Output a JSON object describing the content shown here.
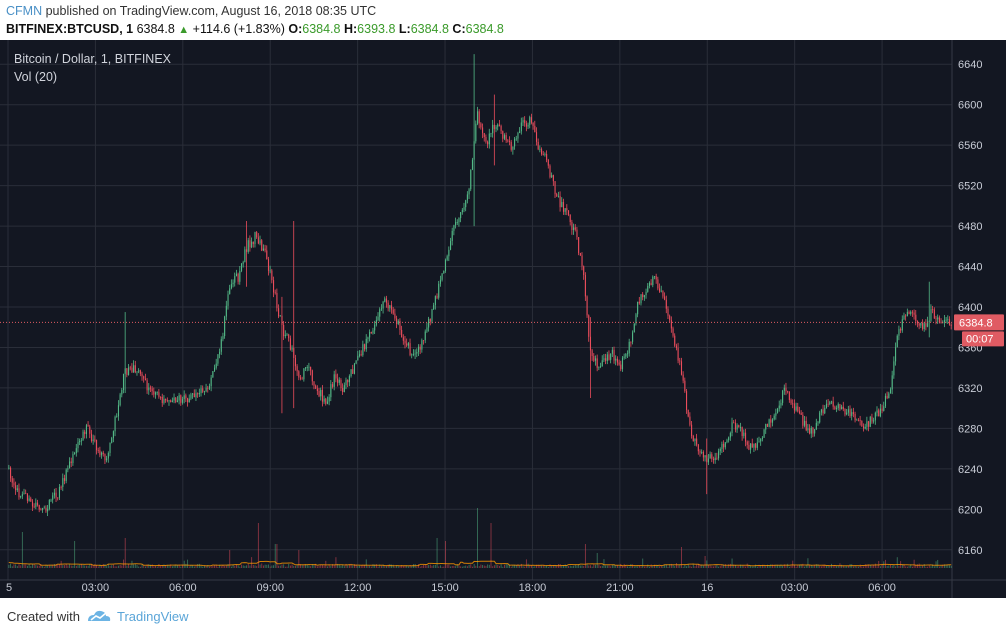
{
  "header": {
    "author": "CFMN",
    "published_text": "published on TradingView.com, August 16, 2018 08:35 UTC",
    "symbol": "BITFINEX:BTCUSD, 1",
    "last": "6384.8",
    "change": "+114.6 (+1.83%)",
    "o_label": "O:",
    "o_value": "6384.8",
    "h_label": "H:",
    "h_value": "6393.8",
    "l_label": "L:",
    "l_value": "6384.8",
    "c_label": "C:",
    "c_value": "6384.8"
  },
  "pane": {
    "title": "Bitcoin / Dollar, 1, BITFINEX",
    "volume_label": "Vol (20)"
  },
  "price_tag": {
    "price": "6384.8",
    "countdown": "00:07"
  },
  "footer": {
    "created_with": "Created with",
    "brand": "TradingView"
  },
  "colors": {
    "background": "#131722",
    "grid": "#2a2e39",
    "up": "#53b987",
    "down": "#eb4d5c",
    "price_tag": "#e05b63",
    "volume_ma": "#ff9800"
  },
  "chart_data": {
    "type": "candlestick",
    "ylim": [
      6140,
      6660
    ],
    "y_ticks": [
      6160,
      6200,
      6240,
      6280,
      6320,
      6360,
      6400,
      6440,
      6480,
      6520,
      6560,
      6600,
      6640
    ],
    "x_ticks": [
      {
        "hour": 0,
        "label": "5"
      },
      {
        "hour": 3,
        "label": "03:00"
      },
      {
        "hour": 6,
        "label": "06:00"
      },
      {
        "hour": 9,
        "label": "09:00"
      },
      {
        "hour": 12,
        "label": "12:00"
      },
      {
        "hour": 15,
        "label": "15:00"
      },
      {
        "hour": 18,
        "label": "18:00"
      },
      {
        "hour": 21,
        "label": "21:00"
      },
      {
        "hour": 24,
        "label": "16"
      },
      {
        "hour": 27,
        "label": "03:00"
      },
      {
        "hour": 30,
        "label": "06:00"
      }
    ],
    "xlim_hours": [
      0,
      32.4
    ],
    "price_path": [
      [
        0.0,
        6240
      ],
      [
        0.4,
        6215
      ],
      [
        0.9,
        6205
      ],
      [
        1.3,
        6200
      ],
      [
        1.8,
        6220
      ],
      [
        2.3,
        6260
      ],
      [
        2.7,
        6280
      ],
      [
        3.1,
        6260
      ],
      [
        3.4,
        6250
      ],
      [
        3.7,
        6290
      ],
      [
        4.0,
        6335
      ],
      [
        4.4,
        6340
      ],
      [
        4.8,
        6320
      ],
      [
        5.2,
        6310
      ],
      [
        5.6,
        6310
      ],
      [
        6.0,
        6310
      ],
      [
        6.5,
        6310
      ],
      [
        6.9,
        6325
      ],
      [
        7.3,
        6360
      ],
      [
        7.6,
        6420
      ],
      [
        7.9,
        6430
      ],
      [
        8.2,
        6460
      ],
      [
        8.5,
        6470
      ],
      [
        8.8,
        6455
      ],
      [
        9.1,
        6420
      ],
      [
        9.4,
        6380
      ],
      [
        9.7,
        6360
      ],
      [
        10.0,
        6330
      ],
      [
        10.3,
        6340
      ],
      [
        10.6,
        6320
      ],
      [
        10.9,
        6305
      ],
      [
        11.2,
        6330
      ],
      [
        11.5,
        6320
      ],
      [
        11.9,
        6340
      ],
      [
        12.2,
        6360
      ],
      [
        12.6,
        6380
      ],
      [
        12.9,
        6410
      ],
      [
        13.3,
        6390
      ],
      [
        13.6,
        6365
      ],
      [
        14.0,
        6350
      ],
      [
        14.3,
        6370
      ],
      [
        14.6,
        6400
      ],
      [
        14.9,
        6430
      ],
      [
        15.2,
        6470
      ],
      [
        15.5,
        6490
      ],
      [
        15.8,
        6510
      ],
      [
        16.1,
        6590
      ],
      [
        16.4,
        6560
      ],
      [
        16.7,
        6580
      ],
      [
        17.0,
        6570
      ],
      [
        17.3,
        6555
      ],
      [
        17.6,
        6580
      ],
      [
        17.9,
        6585
      ],
      [
        18.2,
        6560
      ],
      [
        18.5,
        6545
      ],
      [
        18.8,
        6510
      ],
      [
        19.2,
        6490
      ],
      [
        19.5,
        6470
      ],
      [
        19.8,
        6420
      ],
      [
        20.0,
        6350
      ],
      [
        20.3,
        6340
      ],
      [
        20.7,
        6355
      ],
      [
        21.0,
        6340
      ],
      [
        21.3,
        6360
      ],
      [
        21.6,
        6400
      ],
      [
        21.9,
        6420
      ],
      [
        22.2,
        6430
      ],
      [
        22.5,
        6410
      ],
      [
        22.8,
        6370
      ],
      [
        23.1,
        6340
      ],
      [
        23.4,
        6280
      ],
      [
        23.7,
        6260
      ],
      [
        24.0,
        6250
      ],
      [
        24.3,
        6250
      ],
      [
        24.6,
        6265
      ],
      [
        24.9,
        6285
      ],
      [
        25.2,
        6275
      ],
      [
        25.5,
        6260
      ],
      [
        25.8,
        6270
      ],
      [
        26.1,
        6285
      ],
      [
        26.4,
        6300
      ],
      [
        26.7,
        6320
      ],
      [
        27.0,
        6300
      ],
      [
        27.3,
        6285
      ],
      [
        27.6,
        6275
      ],
      [
        27.9,
        6295
      ],
      [
        28.2,
        6310
      ],
      [
        28.5,
        6300
      ],
      [
        28.8,
        6295
      ],
      [
        29.1,
        6290
      ],
      [
        29.4,
        6280
      ],
      [
        29.7,
        6290
      ],
      [
        30.0,
        6300
      ],
      [
        30.3,
        6320
      ],
      [
        30.5,
        6370
      ],
      [
        30.8,
        6395
      ],
      [
        31.1,
        6390
      ],
      [
        31.4,
        6380
      ],
      [
        31.7,
        6395
      ],
      [
        32.0,
        6388
      ],
      [
        32.3,
        6384.8
      ]
    ],
    "spikes": [
      {
        "hour": 4.0,
        "high": 6395,
        "low": 6315
      },
      {
        "hour": 8.2,
        "high": 6485,
        "low": 6420
      },
      {
        "hour": 9.8,
        "high": 6485,
        "low": 6300
      },
      {
        "hour": 9.4,
        "high": 6410,
        "low": 6295
      },
      {
        "hour": 16.0,
        "high": 6650,
        "low": 6480
      },
      {
        "hour": 16.7,
        "high": 6610,
        "low": 6540
      },
      {
        "hour": 20.0,
        "high": 6390,
        "low": 6310
      },
      {
        "hour": 24.0,
        "high": 6270,
        "low": 6215
      },
      {
        "hour": 31.6,
        "high": 6425,
        "low": 6370
      }
    ],
    "volume_spikes": [
      {
        "hour": 0.5,
        "value": 0.6
      },
      {
        "hour": 2.3,
        "value": 0.45
      },
      {
        "hour": 4.0,
        "value": 0.5
      },
      {
        "hour": 7.6,
        "value": 0.3
      },
      {
        "hour": 8.6,
        "value": 0.75
      },
      {
        "hour": 9.2,
        "value": 0.4
      },
      {
        "hour": 10.0,
        "value": 0.3
      },
      {
        "hour": 14.7,
        "value": 0.5
      },
      {
        "hour": 15.0,
        "value": 0.45
      },
      {
        "hour": 16.1,
        "value": 1.0
      },
      {
        "hour": 16.6,
        "value": 0.75
      },
      {
        "hour": 19.8,
        "value": 0.4
      },
      {
        "hour": 20.2,
        "value": 0.25
      },
      {
        "hour": 23.1,
        "value": 0.35
      },
      {
        "hour": 23.9,
        "value": 0.2
      },
      {
        "hour": 30.5,
        "value": 0.18
      }
    ]
  }
}
